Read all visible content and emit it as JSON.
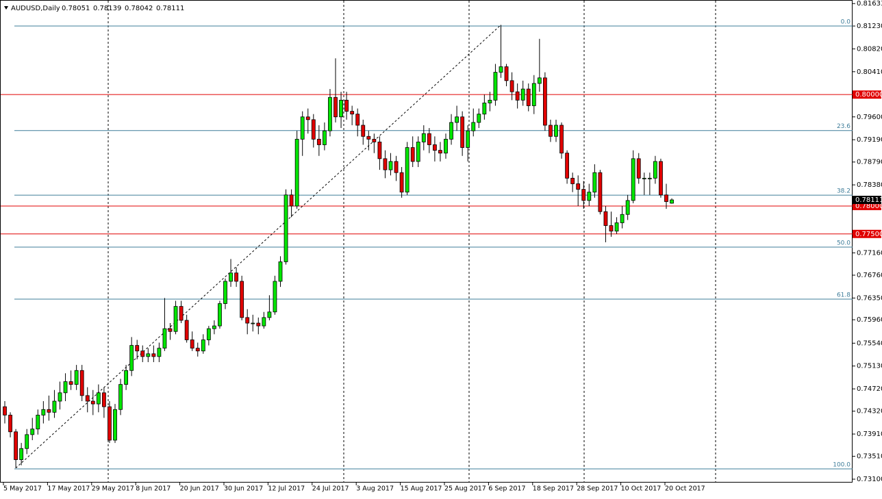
{
  "chart_data": {
    "type": "candlestick",
    "title": "AUDUSD,Daily",
    "categories": [
      "5 May 2017",
      null,
      null,
      null,
      null,
      null,
      null,
      null,
      "17 May 2017",
      null,
      null,
      null,
      null,
      null,
      null,
      null,
      "29 May 2017",
      null,
      null,
      null,
      null,
      null,
      null,
      null,
      "8 Jun 2017",
      null,
      null,
      null,
      null,
      null,
      null,
      null,
      "20 Jun 2017",
      null,
      null,
      null,
      null,
      null,
      null,
      null,
      "30 Jun 2017",
      null,
      null,
      null,
      null,
      null,
      null,
      null,
      "12 Jul 2017",
      null,
      null,
      null,
      null,
      null,
      null,
      null,
      "24 Jul 2017",
      null,
      null,
      null,
      null,
      null,
      null,
      null,
      "3 Aug 2017",
      null,
      null,
      null,
      null,
      null,
      null,
      null,
      "15 Aug 2017",
      null,
      null,
      null,
      null,
      null,
      null,
      null,
      "25 Aug 2017",
      null,
      null,
      null,
      null,
      null,
      null,
      null,
      "6 Sep 2017",
      null,
      null,
      null,
      null,
      null,
      null,
      null,
      "18 Sep 2017",
      null,
      null,
      null,
      null,
      null,
      null,
      null,
      "28 Sep 2017",
      null,
      null,
      null,
      null,
      null,
      null,
      null,
      "10 Oct 2017",
      null,
      null,
      null,
      null,
      null,
      null,
      null,
      "20 Oct 2017",
      null
    ],
    "ohlc": [
      [
        0.744,
        0.745,
        0.741,
        0.7425
      ],
      [
        0.7425,
        0.743,
        0.7385,
        0.7395
      ],
      [
        0.7395,
        0.74,
        0.733,
        0.7345
      ],
      [
        0.7345,
        0.7375,
        0.7335,
        0.7365
      ],
      [
        0.7365,
        0.74,
        0.7355,
        0.739
      ],
      [
        0.739,
        0.742,
        0.738,
        0.74
      ],
      [
        0.74,
        0.7435,
        0.739,
        0.7425
      ],
      [
        0.7425,
        0.745,
        0.741,
        0.7435
      ],
      [
        0.7435,
        0.746,
        0.7415,
        0.743
      ],
      [
        0.743,
        0.747,
        0.742,
        0.745
      ],
      [
        0.745,
        0.7485,
        0.7435,
        0.7465
      ],
      [
        0.7465,
        0.75,
        0.745,
        0.7485
      ],
      [
        0.7485,
        0.7505,
        0.747,
        0.748
      ],
      [
        0.748,
        0.7515,
        0.747,
        0.7505
      ],
      [
        0.7505,
        0.7515,
        0.745,
        0.746
      ],
      [
        0.746,
        0.7475,
        0.743,
        0.745
      ],
      [
        0.745,
        0.747,
        0.7425,
        0.7445
      ],
      [
        0.7445,
        0.748,
        0.743,
        0.7465
      ],
      [
        0.7465,
        0.7475,
        0.742,
        0.744
      ],
      [
        0.744,
        0.745,
        0.7375,
        0.738
      ],
      [
        0.738,
        0.7445,
        0.7375,
        0.7435
      ],
      [
        0.7435,
        0.749,
        0.7425,
        0.748
      ],
      [
        0.748,
        0.7515,
        0.747,
        0.7505
      ],
      [
        0.7505,
        0.7565,
        0.7495,
        0.755
      ],
      [
        0.755,
        0.756,
        0.7525,
        0.754
      ],
      [
        0.754,
        0.755,
        0.752,
        0.753
      ],
      [
        0.753,
        0.7545,
        0.752,
        0.7535
      ],
      [
        0.7535,
        0.755,
        0.752,
        0.753
      ],
      [
        0.753,
        0.7555,
        0.752,
        0.7545
      ],
      [
        0.7545,
        0.7635,
        0.754,
        0.758
      ],
      [
        0.758,
        0.759,
        0.756,
        0.7575
      ],
      [
        0.7575,
        0.763,
        0.757,
        0.762
      ],
      [
        0.762,
        0.763,
        0.759,
        0.7595
      ],
      [
        0.7595,
        0.7605,
        0.7555,
        0.756
      ],
      [
        0.756,
        0.7575,
        0.754,
        0.7545
      ],
      [
        0.7545,
        0.7555,
        0.753,
        0.754
      ],
      [
        0.754,
        0.757,
        0.7535,
        0.756
      ],
      [
        0.756,
        0.7585,
        0.755,
        0.758
      ],
      [
        0.758,
        0.7595,
        0.757,
        0.7585
      ],
      [
        0.7585,
        0.763,
        0.758,
        0.7625
      ],
      [
        0.7625,
        0.767,
        0.7615,
        0.7665
      ],
      [
        0.7665,
        0.7705,
        0.7655,
        0.768
      ],
      [
        0.768,
        0.769,
        0.7655,
        0.7665
      ],
      [
        0.7665,
        0.7675,
        0.7595,
        0.76
      ],
      [
        0.76,
        0.7615,
        0.757,
        0.759
      ],
      [
        0.759,
        0.7605,
        0.7575,
        0.759
      ],
      [
        0.759,
        0.76,
        0.757,
        0.7585
      ],
      [
        0.7585,
        0.761,
        0.758,
        0.76
      ],
      [
        0.76,
        0.764,
        0.7595,
        0.761
      ],
      [
        0.761,
        0.7675,
        0.7605,
        0.7665
      ],
      [
        0.7665,
        0.771,
        0.7655,
        0.77
      ],
      [
        0.77,
        0.783,
        0.7695,
        0.782
      ],
      [
        0.782,
        0.783,
        0.778,
        0.78
      ],
      [
        0.78,
        0.7935,
        0.7795,
        0.792
      ],
      [
        0.792,
        0.797,
        0.789,
        0.796
      ],
      [
        0.796,
        0.7975,
        0.793,
        0.7955
      ],
      [
        0.7955,
        0.7965,
        0.7905,
        0.792
      ],
      [
        0.792,
        0.7945,
        0.789,
        0.791
      ],
      [
        0.791,
        0.795,
        0.79,
        0.7935
      ],
      [
        0.7935,
        0.801,
        0.7925,
        0.7995
      ],
      [
        0.7995,
        0.8065,
        0.795,
        0.796
      ],
      [
        0.796,
        0.8005,
        0.794,
        0.799
      ],
      [
        0.799,
        0.8005,
        0.7955,
        0.797
      ],
      [
        0.797,
        0.798,
        0.7945,
        0.7965
      ],
      [
        0.7965,
        0.7975,
        0.7925,
        0.7945
      ],
      [
        0.7945,
        0.7955,
        0.791,
        0.7925
      ],
      [
        0.7925,
        0.7935,
        0.79,
        0.792
      ],
      [
        0.792,
        0.793,
        0.7895,
        0.7915
      ],
      [
        0.7915,
        0.7925,
        0.7865,
        0.7885
      ],
      [
        0.7885,
        0.79,
        0.785,
        0.7865
      ],
      [
        0.7865,
        0.7895,
        0.7855,
        0.788
      ],
      [
        0.788,
        0.789,
        0.7845,
        0.786
      ],
      [
        0.786,
        0.787,
        0.7815,
        0.7825
      ],
      [
        0.7825,
        0.7915,
        0.782,
        0.7905
      ],
      [
        0.7905,
        0.7925,
        0.787,
        0.788
      ],
      [
        0.788,
        0.7925,
        0.787,
        0.7915
      ],
      [
        0.7915,
        0.7945,
        0.79,
        0.793
      ],
      [
        0.793,
        0.794,
        0.7895,
        0.791
      ],
      [
        0.791,
        0.7925,
        0.788,
        0.79
      ],
      [
        0.79,
        0.7915,
        0.788,
        0.7895
      ],
      [
        0.7895,
        0.793,
        0.7885,
        0.792
      ],
      [
        0.792,
        0.7965,
        0.791,
        0.795
      ],
      [
        0.795,
        0.798,
        0.7935,
        0.796
      ],
      [
        0.796,
        0.797,
        0.789,
        0.7905
      ],
      [
        0.7905,
        0.7945,
        0.788,
        0.7935
      ],
      [
        0.7935,
        0.7975,
        0.7925,
        0.795
      ],
      [
        0.795,
        0.7975,
        0.794,
        0.7965
      ],
      [
        0.7965,
        0.8,
        0.7955,
        0.7985
      ],
      [
        0.7985,
        0.8005,
        0.797,
        0.799
      ],
      [
        0.799,
        0.8055,
        0.798,
        0.804
      ],
      [
        0.804,
        0.8125,
        0.803,
        0.805
      ],
      [
        0.805,
        0.8055,
        0.8015,
        0.8025
      ],
      [
        0.8025,
        0.804,
        0.799,
        0.8005
      ],
      [
        0.8005,
        0.802,
        0.7975,
        0.799
      ],
      [
        0.799,
        0.8025,
        0.798,
        0.801
      ],
      [
        0.801,
        0.802,
        0.797,
        0.798
      ],
      [
        0.798,
        0.8035,
        0.7965,
        0.802
      ],
      [
        0.802,
        0.81,
        0.8005,
        0.803
      ],
      [
        0.803,
        0.804,
        0.7935,
        0.7945
      ],
      [
        0.7945,
        0.7955,
        0.7915,
        0.7925
      ],
      [
        0.7925,
        0.7955,
        0.7915,
        0.7945
      ],
      [
        0.7945,
        0.795,
        0.7885,
        0.7895
      ],
      [
        0.7895,
        0.79,
        0.784,
        0.785
      ],
      [
        0.785,
        0.786,
        0.7825,
        0.784
      ],
      [
        0.784,
        0.7855,
        0.78,
        0.783
      ],
      [
        0.783,
        0.7845,
        0.7795,
        0.781
      ],
      [
        0.781,
        0.784,
        0.78,
        0.7825
      ],
      [
        0.7825,
        0.7875,
        0.7815,
        0.786
      ],
      [
        0.786,
        0.7865,
        0.7785,
        0.779
      ],
      [
        0.779,
        0.78,
        0.7735,
        0.7765
      ],
      [
        0.7765,
        0.779,
        0.7745,
        0.7755
      ],
      [
        0.7755,
        0.778,
        0.775,
        0.777
      ],
      [
        0.777,
        0.78,
        0.776,
        0.7785
      ],
      [
        0.7785,
        0.782,
        0.7775,
        0.781
      ],
      [
        0.781,
        0.79,
        0.7805,
        0.7885
      ],
      [
        0.7885,
        0.7895,
        0.784,
        0.785
      ],
      [
        0.785,
        0.786,
        0.782,
        0.785
      ],
      [
        0.785,
        0.786,
        0.782,
        0.785
      ],
      [
        0.785,
        0.789,
        0.784,
        0.788
      ],
      [
        0.788,
        0.7885,
        0.7815,
        0.782
      ],
      [
        0.782,
        0.784,
        0.7795,
        0.7808
      ],
      [
        0.78051,
        0.78139,
        0.78042,
        0.78111
      ]
    ],
    "up_color": "#00e600",
    "down_color": "#e00000",
    "ylim": [
      0.73039,
      0.81697
    ],
    "yticks": [
      {
        "value": 0.81633,
        "label": "0.81633"
      },
      {
        "value": 0.8123,
        "label": "0.81230"
      },
      {
        "value": 0.8082,
        "label": "0.80820"
      },
      {
        "value": 0.8041,
        "label": "0.80410"
      },
      {
        "value": 0.796,
        "label": "0.79600"
      },
      {
        "value": 0.7919,
        "label": "0.79190"
      },
      {
        "value": 0.7879,
        "label": "0.78790"
      },
      {
        "value": 0.7838,
        "label": "0.78380"
      },
      {
        "value": 0.7716,
        "label": "0.77160"
      },
      {
        "value": 0.7676,
        "label": "0.76760"
      },
      {
        "value": 0.7635,
        "label": "0.76350"
      },
      {
        "value": 0.7596,
        "label": "0.75960"
      },
      {
        "value": 0.7554,
        "label": "0.75540"
      },
      {
        "value": 0.7513,
        "label": "0.75130"
      },
      {
        "value": 0.7472,
        "label": "0.74720"
      },
      {
        "value": 0.7432,
        "label": "0.74320"
      },
      {
        "value": 0.7391,
        "label": "0.73910"
      },
      {
        "value": 0.7351,
        "label": "0.73510"
      },
      {
        "value": 0.731,
        "label": "0.73100"
      }
    ],
    "hlines": [
      {
        "value": 0.8,
        "label": "0.80000"
      },
      {
        "value": 0.78,
        "label": "0.78000"
      },
      {
        "value": 0.775,
        "label": "0.77500"
      }
    ],
    "hline_color": "#e00000",
    "fib_levels": [
      {
        "value": 0.8123,
        "label": "0.0"
      },
      {
        "value": 0.79355,
        "label": "23.6"
      },
      {
        "value": 0.78196,
        "label": "38.2"
      },
      {
        "value": 0.77263,
        "label": "50.0"
      },
      {
        "value": 0.7633,
        "label": "61.8"
      },
      {
        "value": 0.73284,
        "label": "100.0"
      }
    ],
    "fib_color": "#3d7c99"
  }
}
